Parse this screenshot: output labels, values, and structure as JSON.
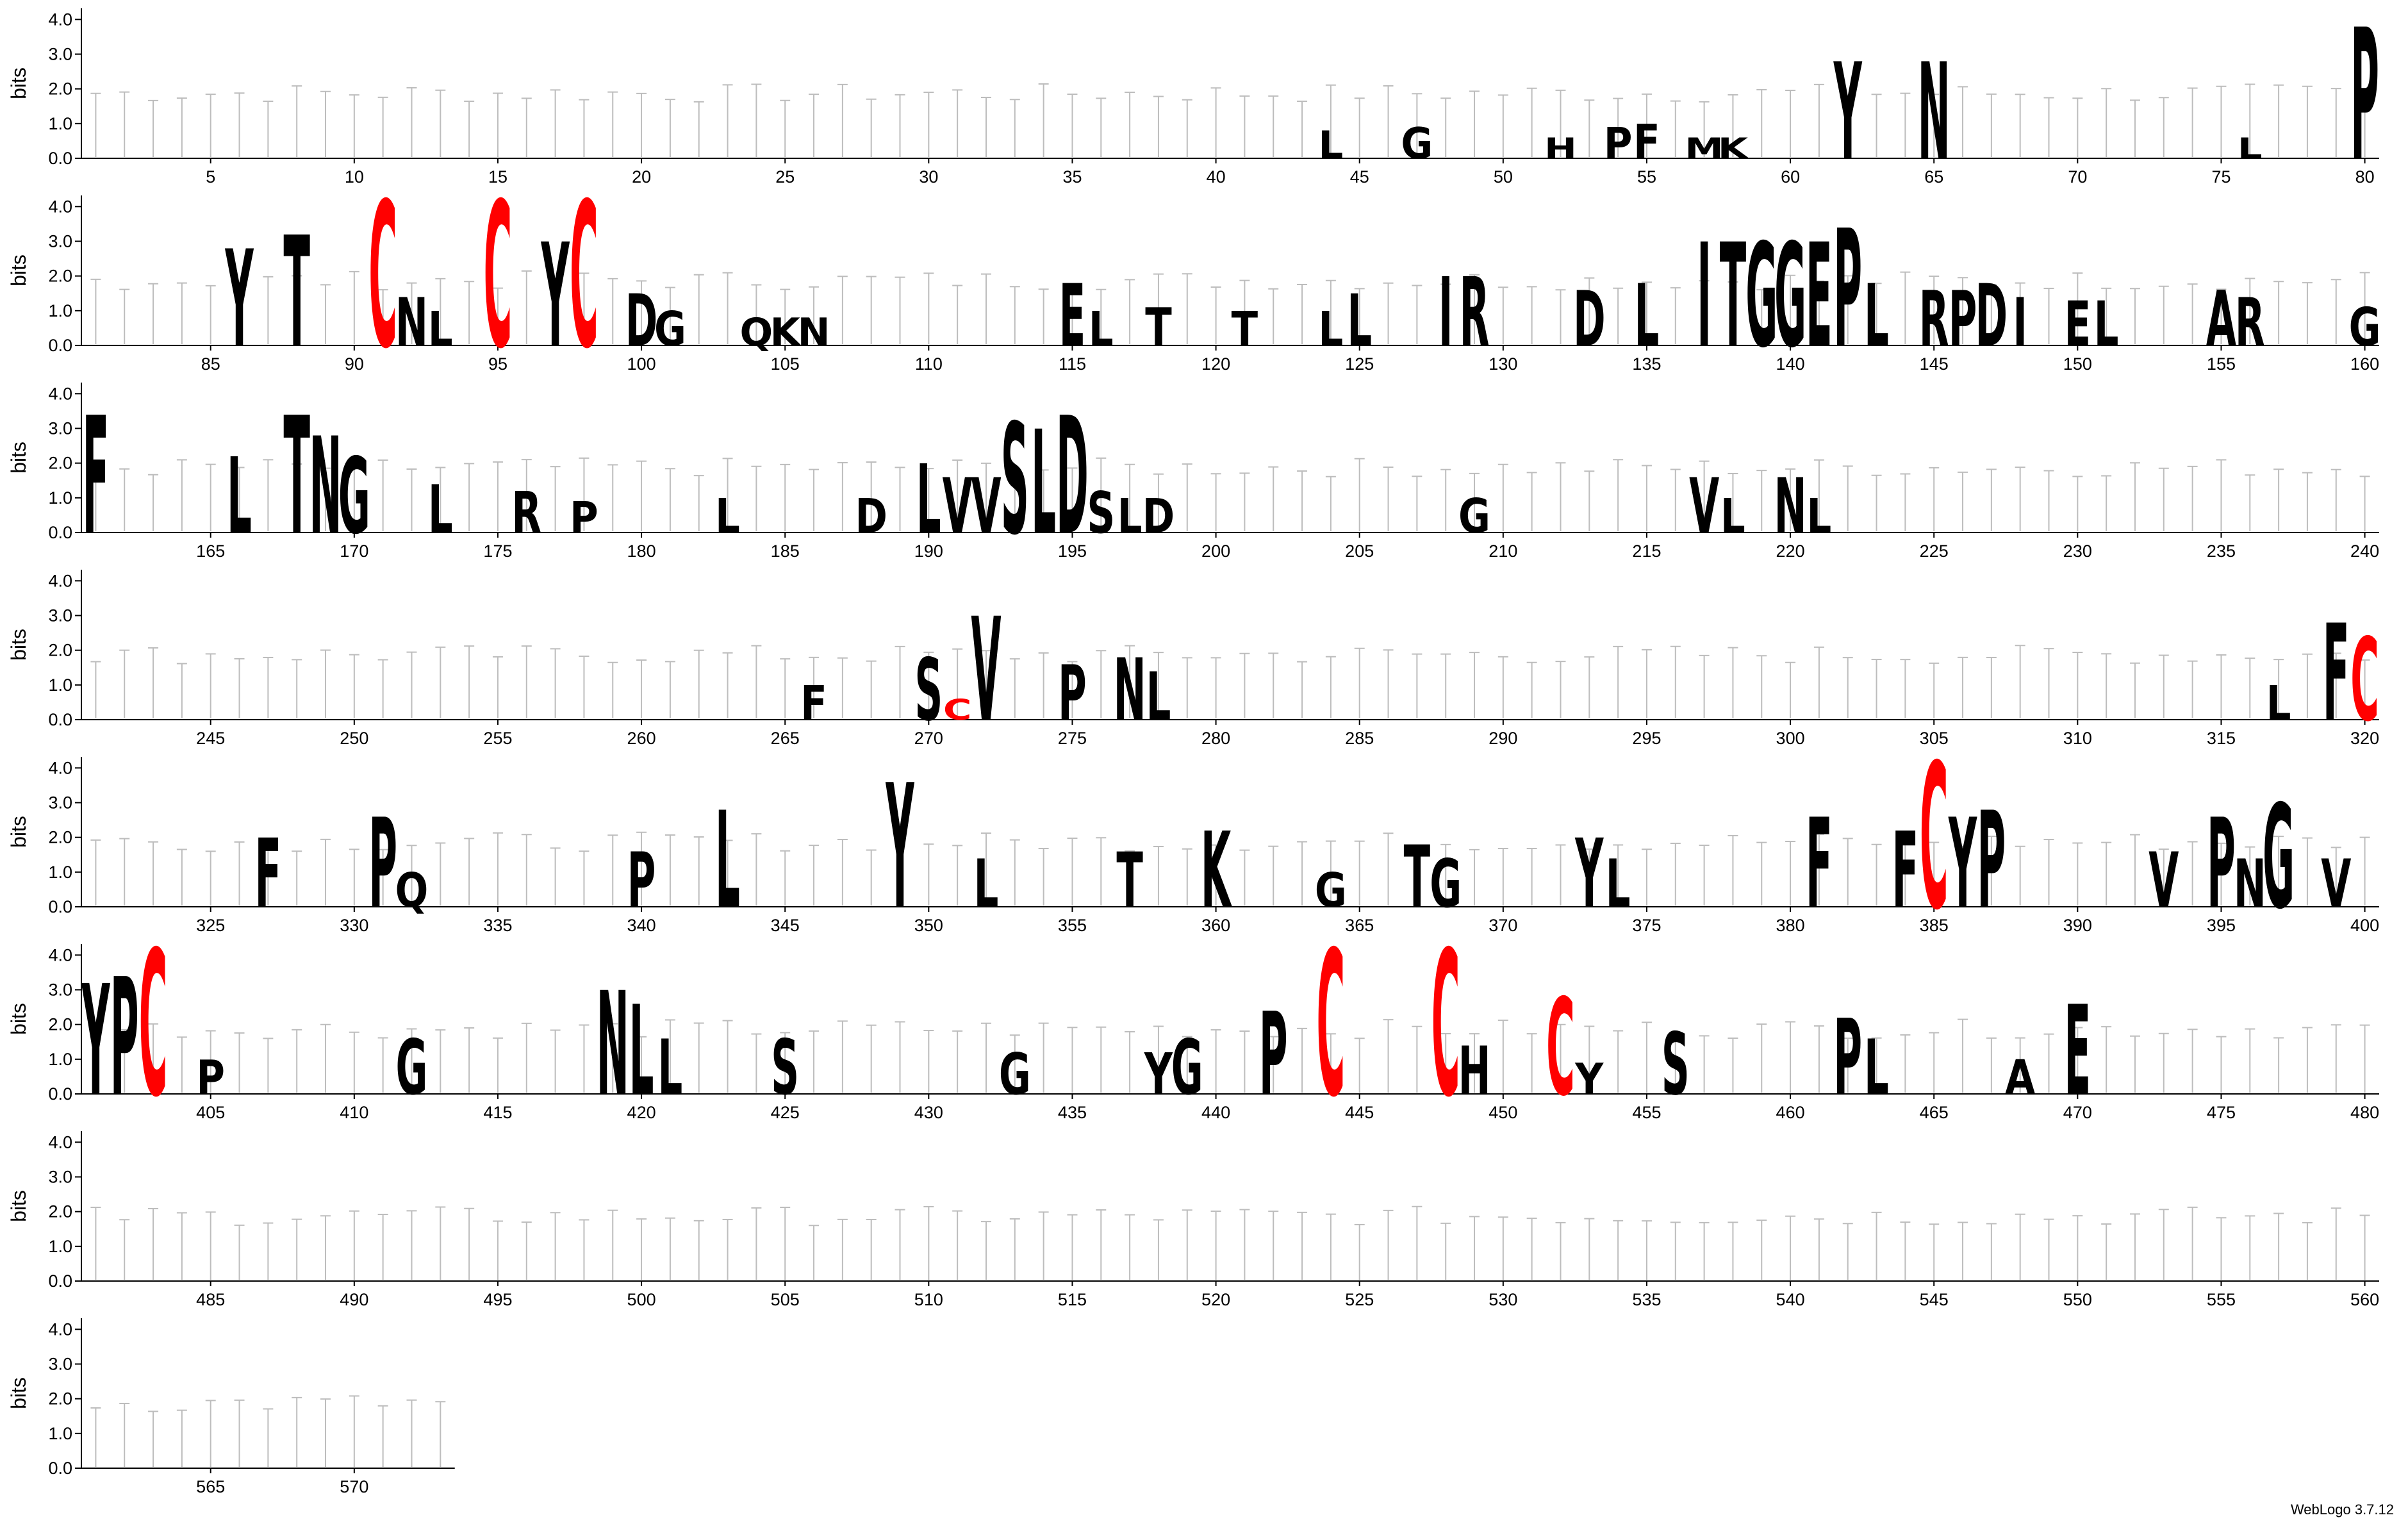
{
  "credit": "WebLogo 3.7.12",
  "chart_data": {
    "type": "sequence-logo",
    "ylabel": "bits",
    "ylim": [
      0,
      4.32
    ],
    "yticks": [
      "0.0",
      "1.0",
      "2.0",
      "3.0",
      "4.0"
    ],
    "positions_per_row": 80,
    "sequence_length": 573,
    "tick_interval": 5,
    "colors": {
      "C": "#ff0000",
      "default": "#000000",
      "errorbar": "#bdbdbd"
    },
    "letters": [
      {
        "pos": 62,
        "ch": "Y",
        "h": 2.8
      },
      {
        "pos": 65,
        "ch": "N",
        "h": 2.8
      },
      {
        "pos": 80,
        "ch": "P",
        "h": 3.8
      },
      {
        "pos": 44,
        "ch": "L",
        "h": 0.8
      },
      {
        "pos": 47,
        "ch": "G",
        "h": 0.9
      },
      {
        "pos": 52,
        "ch": "H",
        "h": 0.6
      },
      {
        "pos": 54,
        "ch": "P",
        "h": 0.9
      },
      {
        "pos": 55,
        "ch": "F",
        "h": 1.0
      },
      {
        "pos": 57,
        "ch": "M",
        "h": 0.6
      },
      {
        "pos": 58,
        "ch": "K",
        "h": 0.6
      },
      {
        "pos": 76,
        "ch": "L",
        "h": 0.6
      },
      {
        "pos": 86,
        "ch": "Y",
        "h": 2.8
      },
      {
        "pos": 88,
        "ch": "T",
        "h": 3.2
      },
      {
        "pos": 91,
        "ch": "C",
        "h": 4.2
      },
      {
        "pos": 92,
        "ch": "N",
        "h": 1.4
      },
      {
        "pos": 93,
        "ch": "L",
        "h": 1.0
      },
      {
        "pos": 95,
        "ch": "C",
        "h": 4.2
      },
      {
        "pos": 97,
        "ch": "Y",
        "h": 3.0
      },
      {
        "pos": 98,
        "ch": "C",
        "h": 4.2
      },
      {
        "pos": 100,
        "ch": "D",
        "h": 1.5
      },
      {
        "pos": 101,
        "ch": "G",
        "h": 1.0
      },
      {
        "pos": 104,
        "ch": "Q",
        "h": 0.8
      },
      {
        "pos": 105,
        "ch": "K",
        "h": 0.8
      },
      {
        "pos": 106,
        "ch": "N",
        "h": 0.8
      },
      {
        "pos": 115,
        "ch": "E",
        "h": 1.8
      },
      {
        "pos": 116,
        "ch": "L",
        "h": 1.0
      },
      {
        "pos": 118,
        "ch": "T",
        "h": 1.1
      },
      {
        "pos": 121,
        "ch": "T",
        "h": 1.0
      },
      {
        "pos": 124,
        "ch": "L",
        "h": 1.0
      },
      {
        "pos": 125,
        "ch": "L",
        "h": 1.5
      },
      {
        "pos": 128,
        "ch": "I",
        "h": 2.0
      },
      {
        "pos": 129,
        "ch": "R",
        "h": 2.0
      },
      {
        "pos": 133,
        "ch": "D",
        "h": 1.6
      },
      {
        "pos": 135,
        "ch": "L",
        "h": 1.8
      },
      {
        "pos": 137,
        "ch": "I",
        "h": 3.0
      },
      {
        "pos": 138,
        "ch": "T",
        "h": 3.0
      },
      {
        "pos": 139,
        "ch": "G",
        "h": 3.0
      },
      {
        "pos": 140,
        "ch": "G",
        "h": 3.0
      },
      {
        "pos": 141,
        "ch": "E",
        "h": 3.0
      },
      {
        "pos": 142,
        "ch": "P",
        "h": 3.4
      },
      {
        "pos": 143,
        "ch": "L",
        "h": 1.8
      },
      {
        "pos": 145,
        "ch": "R",
        "h": 1.6
      },
      {
        "pos": 146,
        "ch": "P",
        "h": 1.6
      },
      {
        "pos": 147,
        "ch": "D",
        "h": 1.8
      },
      {
        "pos": 148,
        "ch": "I",
        "h": 1.4
      },
      {
        "pos": 150,
        "ch": "E",
        "h": 1.3
      },
      {
        "pos": 151,
        "ch": "L",
        "h": 1.3
      },
      {
        "pos": 155,
        "ch": "A",
        "h": 1.6
      },
      {
        "pos": 156,
        "ch": "R",
        "h": 1.4
      },
      {
        "pos": 160,
        "ch": "G",
        "h": 1.1
      },
      {
        "pos": 161,
        "ch": "F",
        "h": 3.4
      },
      {
        "pos": 166,
        "ch": "L",
        "h": 2.2
      },
      {
        "pos": 168,
        "ch": "T",
        "h": 3.4
      },
      {
        "pos": 169,
        "ch": "N",
        "h": 2.8
      },
      {
        "pos": 170,
        "ch": "G",
        "h": 2.2
      },
      {
        "pos": 173,
        "ch": "L",
        "h": 1.4
      },
      {
        "pos": 176,
        "ch": "R",
        "h": 1.2
      },
      {
        "pos": 178,
        "ch": "P",
        "h": 0.9
      },
      {
        "pos": 183,
        "ch": "L",
        "h": 1.0
      },
      {
        "pos": 188,
        "ch": "D",
        "h": 1.0
      },
      {
        "pos": 190,
        "ch": "L",
        "h": 2.0
      },
      {
        "pos": 191,
        "ch": "V",
        "h": 1.6
      },
      {
        "pos": 192,
        "ch": "V",
        "h": 1.6
      },
      {
        "pos": 193,
        "ch": "S",
        "h": 3.2
      },
      {
        "pos": 194,
        "ch": "L",
        "h": 3.0
      },
      {
        "pos": 195,
        "ch": "D",
        "h": 3.4
      },
      {
        "pos": 196,
        "ch": "S",
        "h": 1.2
      },
      {
        "pos": 197,
        "ch": "L",
        "h": 1.0
      },
      {
        "pos": 198,
        "ch": "D",
        "h": 1.0
      },
      {
        "pos": 209,
        "ch": "G",
        "h": 1.0
      },
      {
        "pos": 217,
        "ch": "V",
        "h": 1.6
      },
      {
        "pos": 218,
        "ch": "L",
        "h": 1.0
      },
      {
        "pos": 220,
        "ch": "N",
        "h": 1.6
      },
      {
        "pos": 221,
        "ch": "L",
        "h": 1.0
      },
      {
        "pos": 266,
        "ch": "F",
        "h": 1.0
      },
      {
        "pos": 270,
        "ch": "S",
        "h": 1.8
      },
      {
        "pos": 271,
        "ch": "C",
        "h": 0.6
      },
      {
        "pos": 272,
        "ch": "V",
        "h": 3.0
      },
      {
        "pos": 275,
        "ch": "P",
        "h": 1.6
      },
      {
        "pos": 277,
        "ch": "N",
        "h": 1.8
      },
      {
        "pos": 278,
        "ch": "L",
        "h": 1.4
      },
      {
        "pos": 317,
        "ch": "L",
        "h": 1.0
      },
      {
        "pos": 319,
        "ch": "F",
        "h": 2.8
      },
      {
        "pos": 320,
        "ch": "C",
        "h": 2.4
      },
      {
        "pos": 327,
        "ch": "F",
        "h": 2.0
      },
      {
        "pos": 331,
        "ch": "P",
        "h": 2.6
      },
      {
        "pos": 332,
        "ch": "Q",
        "h": 1.0
      },
      {
        "pos": 340,
        "ch": "P",
        "h": 1.6
      },
      {
        "pos": 343,
        "ch": "L",
        "h": 2.8
      },
      {
        "pos": 349,
        "ch": "Y",
        "h": 3.6
      },
      {
        "pos": 352,
        "ch": "L",
        "h": 1.4
      },
      {
        "pos": 357,
        "ch": "T",
        "h": 1.6
      },
      {
        "pos": 360,
        "ch": "K",
        "h": 2.2
      },
      {
        "pos": 364,
        "ch": "G",
        "h": 1.0
      },
      {
        "pos": 367,
        "ch": "T",
        "h": 1.8
      },
      {
        "pos": 368,
        "ch": "G",
        "h": 1.4
      },
      {
        "pos": 373,
        "ch": "Y",
        "h": 2.0
      },
      {
        "pos": 374,
        "ch": "L",
        "h": 1.4
      },
      {
        "pos": 381,
        "ch": "F",
        "h": 2.6
      },
      {
        "pos": 384,
        "ch": "F",
        "h": 2.2
      },
      {
        "pos": 385,
        "ch": "C",
        "h": 4.2
      },
      {
        "pos": 386,
        "ch": "Y",
        "h": 2.6
      },
      {
        "pos": 387,
        "ch": "P",
        "h": 2.8
      },
      {
        "pos": 393,
        "ch": "V",
        "h": 1.6
      },
      {
        "pos": 395,
        "ch": "P",
        "h": 2.6
      },
      {
        "pos": 396,
        "ch": "N",
        "h": 1.4
      },
      {
        "pos": 397,
        "ch": "G",
        "h": 3.0
      },
      {
        "pos": 399,
        "ch": "V",
        "h": 1.4
      },
      {
        "pos": 401,
        "ch": "Y",
        "h": 3.2
      },
      {
        "pos": 402,
        "ch": "P",
        "h": 3.4
      },
      {
        "pos": 403,
        "ch": "C",
        "h": 4.2
      },
      {
        "pos": 405,
        "ch": "P",
        "h": 1.0
      },
      {
        "pos": 412,
        "ch": "G",
        "h": 1.6
      },
      {
        "pos": 419,
        "ch": "N",
        "h": 3.0
      },
      {
        "pos": 420,
        "ch": "L",
        "h": 2.6
      },
      {
        "pos": 421,
        "ch": "L",
        "h": 1.6
      },
      {
        "pos": 425,
        "ch": "S",
        "h": 1.6
      },
      {
        "pos": 433,
        "ch": "G",
        "h": 1.2
      },
      {
        "pos": 438,
        "ch": "Y",
        "h": 1.2
      },
      {
        "pos": 439,
        "ch": "G",
        "h": 1.6
      },
      {
        "pos": 442,
        "ch": "P",
        "h": 2.4
      },
      {
        "pos": 444,
        "ch": "C",
        "h": 4.2
      },
      {
        "pos": 448,
        "ch": "C",
        "h": 4.2
      },
      {
        "pos": 449,
        "ch": "H",
        "h": 1.4
      },
      {
        "pos": 452,
        "ch": "C",
        "h": 2.8
      },
      {
        "pos": 453,
        "ch": "Y",
        "h": 0.9
      },
      {
        "pos": 456,
        "ch": "S",
        "h": 1.8
      },
      {
        "pos": 462,
        "ch": "P",
        "h": 2.2
      },
      {
        "pos": 463,
        "ch": "L",
        "h": 1.6
      },
      {
        "pos": 468,
        "ch": "A",
        "h": 1.0
      },
      {
        "pos": 470,
        "ch": "E",
        "h": 2.6
      }
    ]
  }
}
